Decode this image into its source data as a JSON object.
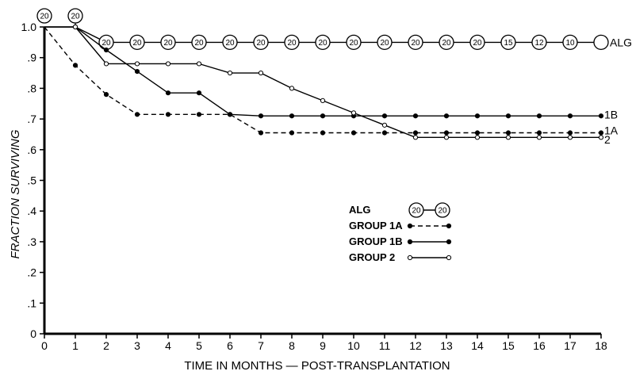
{
  "chart_data": {
    "type": "line",
    "title": "",
    "xlabel": "TIME IN MONTHS — POST-TRANSPLANTATION",
    "ylabel": "FRACTION SURVIVING",
    "xlim": [
      0,
      18
    ],
    "ylim": [
      0,
      1.0
    ],
    "x_ticks": [
      "0",
      "1",
      "2",
      "3",
      "4",
      "5",
      "6",
      "7",
      "8",
      "9",
      "10",
      "11",
      "12",
      "13",
      "14",
      "15",
      "16",
      "17",
      "18"
    ],
    "y_ticks": [
      "0",
      ".1",
      ".2",
      ".3",
      ".4",
      ".5",
      ".6",
      ".7",
      ".8",
      ".9",
      "1.0"
    ],
    "grid": false,
    "series": [
      {
        "name": "ALG",
        "end_label": "ALG",
        "style": "circled-number",
        "points": [
          [
            1,
            1.0
          ],
          [
            2,
            0.95
          ],
          [
            3,
            0.95
          ],
          [
            4,
            0.95
          ],
          [
            5,
            0.95
          ],
          [
            6,
            0.95
          ],
          [
            7,
            0.95
          ],
          [
            8,
            0.95
          ],
          [
            9,
            0.95
          ],
          [
            10,
            0.95
          ],
          [
            11,
            0.95
          ],
          [
            12,
            0.95
          ],
          [
            13,
            0.95
          ],
          [
            14,
            0.95
          ],
          [
            15,
            0.95
          ],
          [
            16,
            0.95
          ],
          [
            17,
            0.95
          ],
          [
            18,
            0.95
          ]
        ],
        "point_labels": [
          "20",
          "20",
          "20",
          "20",
          "20",
          "20",
          "20",
          "20",
          "20",
          "20",
          "20",
          "20",
          "20",
          "20",
          "15",
          "12",
          "10"
        ],
        "origin_label": "20"
      },
      {
        "name": "GROUP 1A",
        "end_label": "1A",
        "style": "dashed-filled",
        "points": [
          [
            0,
            1.0
          ],
          [
            1,
            0.875
          ],
          [
            2,
            0.78
          ],
          [
            3,
            0.715
          ],
          [
            4,
            0.715
          ],
          [
            5,
            0.715
          ],
          [
            6,
            0.715
          ],
          [
            7,
            0.655
          ],
          [
            8,
            0.655
          ],
          [
            9,
            0.655
          ],
          [
            10,
            0.655
          ],
          [
            11,
            0.655
          ],
          [
            12,
            0.655
          ],
          [
            13,
            0.655
          ],
          [
            14,
            0.655
          ],
          [
            15,
            0.655
          ],
          [
            16,
            0.655
          ],
          [
            17,
            0.655
          ],
          [
            18,
            0.655
          ]
        ]
      },
      {
        "name": "GROUP 1B",
        "end_label": "1B",
        "style": "solid-filled",
        "points": [
          [
            0,
            1.0
          ],
          [
            1,
            1.0
          ],
          [
            2,
            0.925
          ],
          [
            3,
            0.855
          ],
          [
            4,
            0.785
          ],
          [
            5,
            0.785
          ],
          [
            6,
            0.715
          ],
          [
            7,
            0.71
          ],
          [
            8,
            0.71
          ],
          [
            9,
            0.71
          ],
          [
            10,
            0.71
          ],
          [
            11,
            0.71
          ],
          [
            12,
            0.71
          ],
          [
            13,
            0.71
          ],
          [
            14,
            0.71
          ],
          [
            15,
            0.71
          ],
          [
            16,
            0.71
          ],
          [
            17,
            0.71
          ],
          [
            18,
            0.71
          ]
        ]
      },
      {
        "name": "GROUP 2",
        "end_label": "2",
        "style": "solid-open",
        "points": [
          [
            0,
            1.0
          ],
          [
            1,
            1.0
          ],
          [
            2,
            0.88
          ],
          [
            3,
            0.88
          ],
          [
            4,
            0.88
          ],
          [
            5,
            0.88
          ],
          [
            6,
            0.85
          ],
          [
            7,
            0.85
          ],
          [
            8,
            0.8
          ],
          [
            9,
            0.76
          ],
          [
            10,
            0.72
          ],
          [
            11,
            0.68
          ],
          [
            12,
            0.64
          ],
          [
            13,
            0.64
          ],
          [
            14,
            0.64
          ],
          [
            15,
            0.64
          ],
          [
            16,
            0.64
          ],
          [
            17,
            0.64
          ],
          [
            18,
            0.64
          ]
        ]
      }
    ],
    "legend": {
      "placement": "center-right",
      "alg_sample": [
        "20",
        "20"
      ]
    }
  }
}
